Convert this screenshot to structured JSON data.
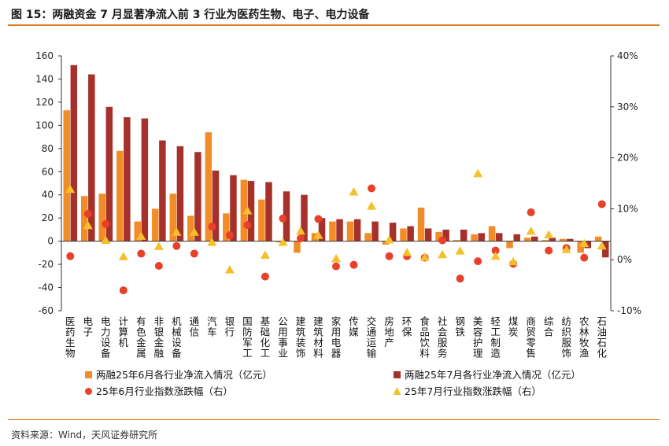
{
  "title": "图 15：两融资金 7 月显著净流入前 3 行业为医药生物、电子、电力设备",
  "source": "资料来源：Wind，天风证券研究所",
  "colors": {
    "june_bar": "#f28c28",
    "july_bar": "#a6312a",
    "june_dot": "#e8402a",
    "july_tri": "#f5c02c",
    "axis": "#333333",
    "accent": "#e07a1f"
  },
  "chart_data": {
    "type": "bar",
    "categories": [
      "医药生物",
      "电子",
      "电力设备",
      "计算机",
      "有色金属",
      "非银金融",
      "机械设备",
      "通信",
      "汽车",
      "银行",
      "国防军工",
      "基础化工",
      "公用事业",
      "建筑装饰",
      "建筑材料",
      "家用电器",
      "传媒",
      "交通运输",
      "房地产",
      "环保",
      "食品饮料",
      "社会服务",
      "钢铁",
      "美容护理",
      "轻工制造",
      "煤炭",
      "商贸零售",
      "综合",
      "纺织服饰",
      "农林牧渔",
      "石油石化"
    ],
    "y_left": {
      "min": -60,
      "max": 160,
      "step": 20,
      "ticks": [
        "-60",
        "-40",
        "-20",
        "0",
        "20",
        "40",
        "60",
        "80",
        "100",
        "120",
        "140",
        "160"
      ]
    },
    "y_right": {
      "min": -10,
      "max": 40,
      "step": 10,
      "ticks": [
        "-10%",
        "0%",
        "10%",
        "20%",
        "30%",
        "40%"
      ]
    },
    "series": [
      {
        "name": "两融25年6月各行业净流入情况（亿元）",
        "type": "bar",
        "axis": "left",
        "values": [
          113,
          39,
          41,
          78,
          17,
          28,
          41,
          22,
          94,
          24,
          53,
          36,
          -1,
          -10,
          7,
          17,
          17,
          7,
          -3,
          11,
          29,
          8,
          1,
          6,
          13,
          -6,
          3,
          1,
          2,
          -10,
          4
        ]
      },
      {
        "name": "两融25年7月各行业净流入情况（亿元）",
        "type": "bar",
        "axis": "left",
        "values": [
          152,
          144,
          116,
          107,
          106,
          87,
          82,
          77,
          61,
          57,
          52,
          51,
          43,
          40,
          20,
          19,
          19,
          17,
          16,
          13,
          11,
          10,
          10,
          7,
          7,
          6,
          4,
          3,
          2,
          -6,
          -14
        ]
      },
      {
        "name": "25年6月行业指数涨跌幅（右）",
        "type": "scatter",
        "marker": "circle",
        "axis": "right",
        "values": [
          0.7,
          9.0,
          7.0,
          -6.0,
          1.2,
          -1.2,
          2.7,
          1.2,
          6.5,
          4.8,
          6.8,
          -3.3,
          8.1,
          4.2,
          8.0,
          -1.3,
          -1.0,
          14.0,
          0.7,
          0.7,
          0.4,
          3.8,
          -3.7,
          -0.3,
          1.8,
          -0.8,
          9.3,
          1.8,
          2.3,
          0.4,
          10.9
        ]
      },
      {
        "name": "25年7月行业指数涨跌幅（右）",
        "type": "scatter",
        "marker": "triangle",
        "axis": "right",
        "values": [
          13.8,
          6.7,
          3.8,
          0.6,
          4.6,
          2.6,
          5.4,
          5.4,
          3.4,
          -2.0,
          9.6,
          0.9,
          3.4,
          5.6,
          4.8,
          0.2,
          13.3,
          10.5,
          3.9,
          1.4,
          0.5,
          1.0,
          1.7,
          16.9,
          0.7,
          -0.4,
          5.6,
          4.9,
          2.0,
          3.2,
          2.7
        ]
      }
    ],
    "legend": [
      {
        "label": "两融25年6月各行业净流入情况（亿元）",
        "marker": "square"
      },
      {
        "label": "两融25年7月各行业净流入情况（亿元）",
        "marker": "square"
      },
      {
        "label": "25年6月行业指数涨跌幅（右）",
        "marker": "circle"
      },
      {
        "label": "25年7月行业指数涨跌幅（右）",
        "marker": "triangle"
      }
    ]
  }
}
